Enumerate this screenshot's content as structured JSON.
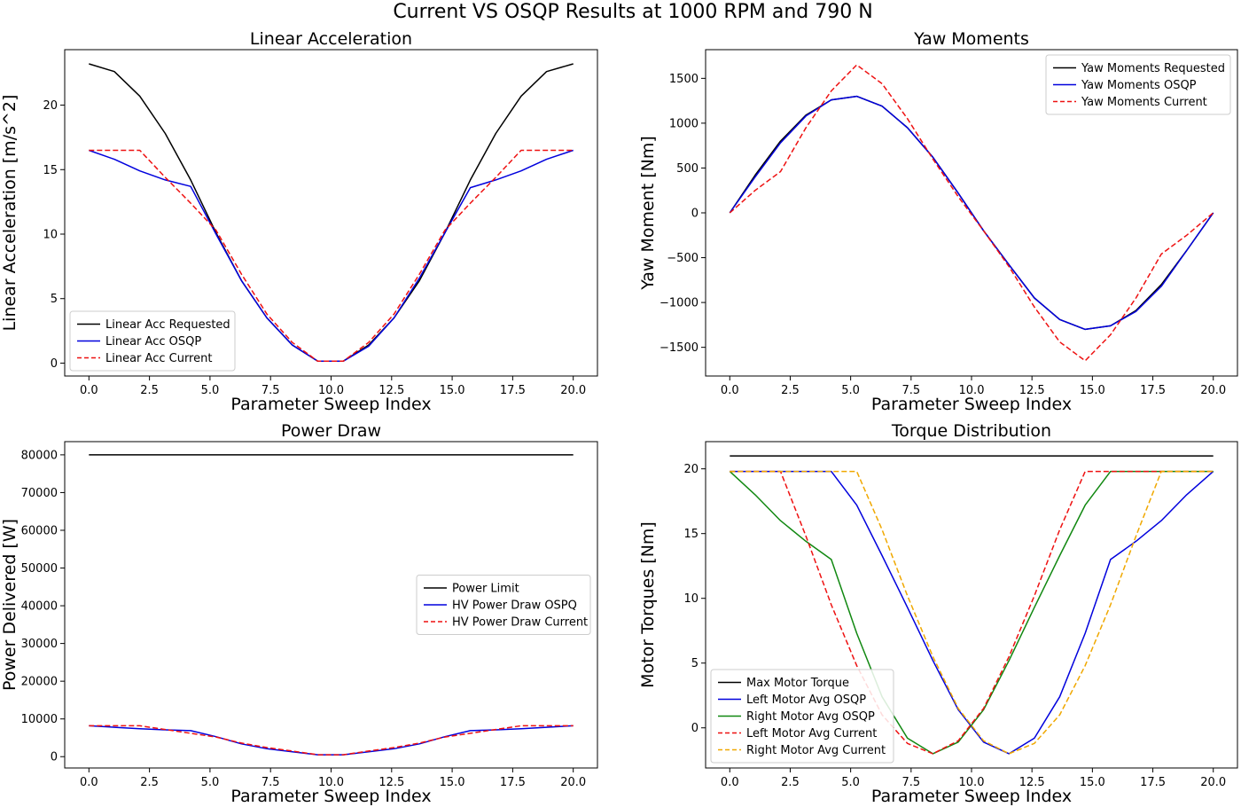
{
  "figure": {
    "suptitle": "Current VS OSQP Results at 1000 RPM and 790 N"
  },
  "chart_data": [
    {
      "type": "line",
      "title": "Linear Acceleration",
      "xlabel": "Parameter Sweep Index",
      "ylabel": "Linear Acceleration [m/s^2]",
      "xlim": [
        -1.0,
        21.0
      ],
      "ylim": [
        -1.0,
        24.3
      ],
      "xticks": [
        0,
        2.5,
        5,
        7.5,
        10,
        12.5,
        15,
        17.5,
        20
      ],
      "xtick_labels": [
        "0.0",
        "2.5",
        "5.0",
        "7.5",
        "10.0",
        "12.5",
        "15.0",
        "17.5",
        "20.0"
      ],
      "yticks": [
        0,
        5,
        10,
        15,
        20
      ],
      "ytick_labels": [
        "0",
        "5",
        "10",
        "15",
        "20"
      ],
      "legend_position": "lower-left",
      "x": [
        0,
        1.05,
        2.1,
        3.15,
        4.2,
        5.25,
        6.3,
        7.35,
        8.4,
        9.45,
        10.5,
        11.55,
        12.6,
        13.65,
        14.7,
        15.75,
        16.8,
        17.85,
        18.9,
        20
      ],
      "series": [
        {
          "name": "Linear Acc Requested",
          "color": "#000000",
          "dash": "solid",
          "values": [
            23.2,
            22.6,
            20.7,
            17.8,
            14.2,
            10.1,
            6.4,
            3.5,
            1.4,
            0.15,
            0.15,
            1.4,
            3.5,
            6.4,
            10.1,
            14.2,
            17.8,
            20.7,
            22.6,
            23.2
          ]
        },
        {
          "name": "Linear Acc OSQP",
          "color": "#0000dd",
          "dash": "solid",
          "values": [
            16.5,
            15.8,
            14.9,
            14.2,
            13.7,
            10.0,
            6.4,
            3.5,
            1.4,
            0.15,
            0.15,
            1.3,
            3.5,
            6.6,
            10.1,
            13.6,
            14.2,
            14.9,
            15.8,
            16.5
          ]
        },
        {
          "name": "Linear Acc Current",
          "color": "#ee1111",
          "dash": "dashed",
          "values": [
            16.5,
            16.5,
            16.5,
            14.4,
            12.4,
            10.3,
            6.9,
            3.8,
            1.6,
            0.15,
            0.15,
            1.6,
            3.8,
            6.9,
            10.3,
            12.4,
            14.4,
            16.5,
            16.5,
            16.5
          ]
        }
      ]
    },
    {
      "type": "line",
      "title": "Yaw Moments",
      "xlabel": "Parameter Sweep Index",
      "ylabel": "Yaw Moment [Nm]",
      "xlim": [
        -1.0,
        21.0
      ],
      "ylim": [
        -1820,
        1820
      ],
      "xticks": [
        0,
        2.5,
        5,
        7.5,
        10,
        12.5,
        15,
        17.5,
        20
      ],
      "xtick_labels": [
        "0.0",
        "2.5",
        "5.0",
        "7.5",
        "10.0",
        "12.5",
        "15.0",
        "17.5",
        "20.0"
      ],
      "yticks": [
        -1500,
        -1000,
        -500,
        0,
        500,
        1000,
        1500
      ],
      "ytick_labels": [
        "−1500",
        "−1000",
        "−500",
        "0",
        "500",
        "1000",
        "1500"
      ],
      "legend_position": "upper-right",
      "x": [
        0,
        1.05,
        2.1,
        3.15,
        4.2,
        5.25,
        6.3,
        7.35,
        8.4,
        9.45,
        10.5,
        11.55,
        12.6,
        13.65,
        14.7,
        15.75,
        16.8,
        17.85,
        18.9,
        20
      ],
      "series": [
        {
          "name": "Yaw Moments Requested",
          "color": "#000000",
          "dash": "solid",
          "values": [
            0,
            420,
            800,
            1090,
            1260,
            1300,
            1190,
            950,
            620,
            220,
            -200,
            -580,
            -950,
            -1190,
            -1300,
            -1260,
            -1090,
            -800,
            -420,
            0
          ]
        },
        {
          "name": "Yaw Moments OSQP",
          "color": "#0000dd",
          "dash": "solid",
          "values": [
            0,
            400,
            780,
            1080,
            1260,
            1300,
            1190,
            950,
            620,
            220,
            -200,
            -580,
            -950,
            -1190,
            -1300,
            -1260,
            -1100,
            -820,
            -420,
            0
          ]
        },
        {
          "name": "Yaw Moments Current",
          "color": "#ee1111",
          "dash": "dashed",
          "values": [
            0,
            250,
            460,
            950,
            1360,
            1650,
            1440,
            1050,
            600,
            180,
            -200,
            -600,
            -1050,
            -1440,
            -1650,
            -1360,
            -950,
            -460,
            -250,
            0
          ]
        }
      ]
    },
    {
      "type": "line",
      "title": "Power Draw",
      "xlabel": "Parameter Sweep Index",
      "ylabel": "Power Delivered [W]",
      "xlim": [
        -1.0,
        21.0
      ],
      "ylim": [
        -3000,
        83500
      ],
      "xticks": [
        0,
        2.5,
        5,
        7.5,
        10,
        12.5,
        15,
        17.5,
        20
      ],
      "xtick_labels": [
        "0.0",
        "2.5",
        "5.0",
        "7.5",
        "10.0",
        "12.5",
        "15.0",
        "17.5",
        "20.0"
      ],
      "yticks": [
        0,
        10000,
        20000,
        30000,
        40000,
        50000,
        60000,
        70000,
        80000
      ],
      "ytick_labels": [
        "0",
        "10000",
        "20000",
        "30000",
        "40000",
        "50000",
        "60000",
        "70000",
        "80000"
      ],
      "legend_position": "center-right",
      "x": [
        0,
        1.05,
        2.1,
        3.15,
        4.2,
        5.25,
        6.3,
        7.35,
        8.4,
        9.45,
        10.5,
        11.55,
        12.6,
        13.65,
        14.7,
        15.75,
        16.8,
        17.85,
        18.9,
        20
      ],
      "series": [
        {
          "name": "Power Limit",
          "color": "#000000",
          "dash": "solid",
          "values": [
            80000,
            80000,
            80000,
            80000,
            80000,
            80000,
            80000,
            80000,
            80000,
            80000,
            80000,
            80000,
            80000,
            80000,
            80000,
            80000,
            80000,
            80000,
            80000,
            80000
          ]
        },
        {
          "name": "HV Power Draw OSPQ",
          "color": "#0000dd",
          "dash": "solid",
          "values": [
            8200,
            7800,
            7400,
            7100,
            6900,
            5300,
            3400,
            2100,
            1300,
            500,
            500,
            1300,
            2100,
            3400,
            5300,
            6900,
            7100,
            7400,
            7800,
            8200
          ]
        },
        {
          "name": "HV Power Draw Current",
          "color": "#ee1111",
          "dash": "dashed",
          "values": [
            8200,
            8200,
            8200,
            7200,
            6200,
            5200,
            3600,
            2400,
            1500,
            500,
            500,
            1500,
            2400,
            3600,
            5200,
            6200,
            7200,
            8200,
            8200,
            8200
          ]
        }
      ]
    },
    {
      "type": "line",
      "title": "Torque Distribution",
      "xlabel": "Parameter Sweep Index",
      "ylabel": "Motor Torques [Nm]",
      "xlim": [
        -1.0,
        21.0
      ],
      "ylim": [
        -3.1,
        22.1
      ],
      "xticks": [
        0,
        2.5,
        5,
        7.5,
        10,
        12.5,
        15,
        17.5,
        20
      ],
      "xtick_labels": [
        "0.0",
        "2.5",
        "5.0",
        "7.5",
        "10.0",
        "12.5",
        "15.0",
        "17.5",
        "20.0"
      ],
      "yticks": [
        0,
        5,
        10,
        15,
        20
      ],
      "ytick_labels": [
        "0",
        "5",
        "10",
        "15",
        "20"
      ],
      "legend_position": "lower-left",
      "x": [
        0,
        1.05,
        2.1,
        3.15,
        4.2,
        5.25,
        6.3,
        7.35,
        8.4,
        9.45,
        10.5,
        11.55,
        12.6,
        13.65,
        14.7,
        15.75,
        16.8,
        17.85,
        18.9,
        20
      ],
      "series": [
        {
          "name": "Max Motor Torque",
          "color": "#000000",
          "dash": "solid",
          "values": [
            21,
            21,
            21,
            21,
            21,
            21,
            21,
            21,
            21,
            21,
            21,
            21,
            21,
            21,
            21,
            21,
            21,
            21,
            21,
            21
          ]
        },
        {
          "name": "Left Motor Avg OSQP",
          "color": "#0000dd",
          "dash": "solid",
          "values": [
            19.8,
            19.8,
            19.8,
            19.8,
            19.8,
            17.2,
            13.3,
            9.3,
            5.2,
            1.4,
            -1.1,
            -2.0,
            -0.8,
            2.4,
            7.3,
            13.0,
            14.4,
            16.0,
            18.0,
            19.8
          ]
        },
        {
          "name": "Right Motor Avg OSQP",
          "color": "#118811",
          "dash": "solid",
          "values": [
            19.8,
            18.0,
            16.0,
            14.4,
            13.0,
            7.3,
            2.4,
            -0.8,
            -2.0,
            -1.1,
            1.4,
            5.2,
            9.3,
            13.3,
            17.2,
            19.8,
            19.8,
            19.8,
            19.8,
            19.8
          ]
        },
        {
          "name": "Left Motor Avg Current",
          "color": "#ee1111",
          "dash": "dashed",
          "values": [
            19.8,
            19.8,
            19.8,
            14.8,
            9.5,
            4.8,
            1.0,
            -1.2,
            -2.0,
            -1.0,
            1.5,
            5.5,
            10.2,
            15.3,
            19.8,
            19.8,
            19.8,
            19.8,
            19.8,
            19.8
          ]
        },
        {
          "name": "Right Motor Avg Current",
          "color": "#f0a800",
          "dash": "dashed",
          "values": [
            19.8,
            19.8,
            19.8,
            19.8,
            19.8,
            19.8,
            15.3,
            10.2,
            5.5,
            1.5,
            -1.0,
            -2.0,
            -1.2,
            1.0,
            4.8,
            9.5,
            14.8,
            19.8,
            19.8,
            19.8
          ]
        }
      ]
    }
  ]
}
